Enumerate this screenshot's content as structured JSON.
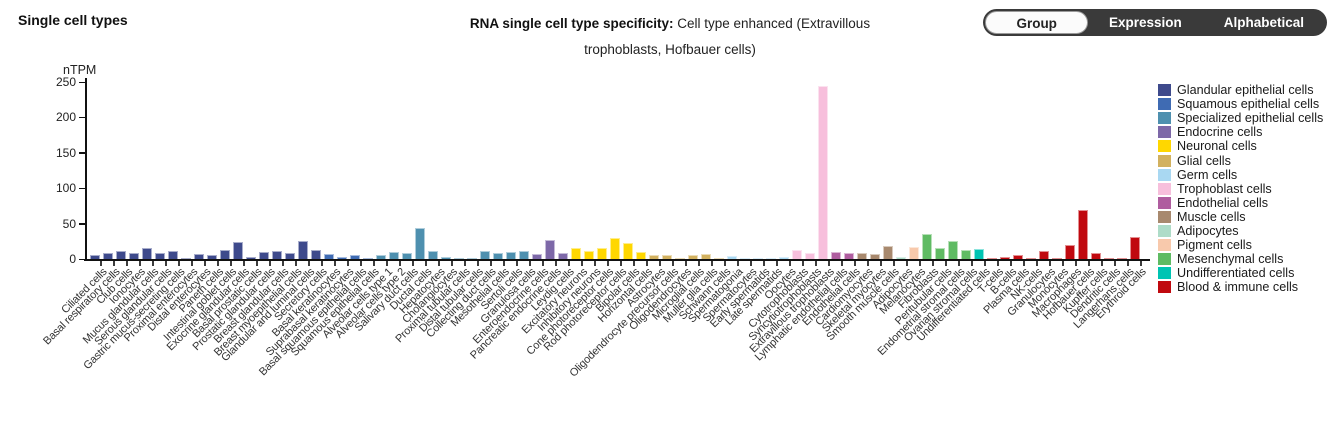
{
  "page": {
    "left_title": "Single cell types"
  },
  "title": {
    "bold": "RNA single cell type specificity:",
    "rest": " Cell type enhanced (Extravillous trophoblasts, Hofbauer cells)"
  },
  "controls": {
    "selected": "Group",
    "options": [
      "Group",
      "Expression",
      "Alphabetical"
    ]
  },
  "chart_data": {
    "type": "bar",
    "title": "RNA single cell type specificity: Cell type enhanced (Extravillous trophoblasts, Hofbauer cells)",
    "ylabel": "nTPM",
    "ylim": [
      0,
      250
    ],
    "yticks": [
      0,
      50,
      100,
      150,
      200,
      250
    ],
    "grid": false,
    "legend_position": "right",
    "groups": [
      {
        "name": "Glandular epithelial cells",
        "color": "#3E4A8C",
        "cells": [
          {
            "label": "Ciliated cells",
            "value": 6
          },
          {
            "label": "Basal respiratory cells",
            "value": 9
          },
          {
            "label": "Club cells",
            "value": 11
          },
          {
            "label": "Ionocytes",
            "value": 9
          },
          {
            "label": "Mucus glandular cells",
            "value": 15
          },
          {
            "label": "Serous glandular cells",
            "value": 8
          },
          {
            "label": "Gastric mucus-secreting cells",
            "value": 11
          },
          {
            "label": "Proximal enterocytes",
            "value": 2
          },
          {
            "label": "Distal enterocytes",
            "value": 7
          },
          {
            "label": "Paneth cells",
            "value": 6
          },
          {
            "label": "Intestinal goblet cells",
            "value": 13
          },
          {
            "label": "Exocrine glandular cells",
            "value": 24
          },
          {
            "label": "Basal prostatic cells",
            "value": 3
          },
          {
            "label": "Prostatic glandular cells",
            "value": 10
          },
          {
            "label": "Breast glandular cells",
            "value": 12
          },
          {
            "label": "Breast myoepithelial cells",
            "value": 8
          },
          {
            "label": "Glandular and luminal cells",
            "value": 26
          },
          {
            "label": "Secretory cells",
            "value": 13
          }
        ]
      },
      {
        "name": "Squamous epithelial cells",
        "color": "#3F6BB3",
        "cells": [
          {
            "label": "Basal keratinocytes",
            "value": 7
          },
          {
            "label": "Suprabasal keratinocytes",
            "value": 3
          },
          {
            "label": "Basal squamous epithelial cells",
            "value": 6
          },
          {
            "label": "Squamous epithelial cells",
            "value": 1.5
          }
        ]
      },
      {
        "name": "Specialized epithelial cells",
        "color": "#4E90AF",
        "cells": [
          {
            "label": "Alveolar cells type 1",
            "value": 5
          },
          {
            "label": "Alveolar cells type 2",
            "value": 10
          },
          {
            "label": "Salivary duct cells",
            "value": 9
          },
          {
            "label": "Ductal cells",
            "value": 44
          },
          {
            "label": "Hepatocytes",
            "value": 11
          },
          {
            "label": "Cholangiocytes",
            "value": 3.5
          },
          {
            "label": "Proximal tubular cells",
            "value": 2
          },
          {
            "label": "Distal tubular cells",
            "value": 0.5
          },
          {
            "label": "Collecting duct cells",
            "value": 11
          },
          {
            "label": "Mesothelial cells",
            "value": 9
          },
          {
            "label": "Sertoli cells",
            "value": 10
          },
          {
            "label": "Granulosa cells",
            "value": 11
          }
        ]
      },
      {
        "name": "Endocrine cells",
        "color": "#7D68A8",
        "cells": [
          {
            "label": "Enteroendocrine cells",
            "value": 7
          },
          {
            "label": "Pancreatic endocrine cells",
            "value": 27
          },
          {
            "label": "Leydig cells",
            "value": 8
          }
        ]
      },
      {
        "name": "Neuronal cells",
        "color": "#FFD700",
        "cells": [
          {
            "label": "Excitatory neurons",
            "value": 16
          },
          {
            "label": "Inhibitory neurons",
            "value": 11
          },
          {
            "label": "Cone photoreceptor cells",
            "value": 16
          },
          {
            "label": "Rod photoreceptor cells",
            "value": 29
          },
          {
            "label": "Bipolar cells",
            "value": 22
          },
          {
            "label": "Horizontal cells",
            "value": 10
          }
        ]
      },
      {
        "name": "Glial cells",
        "color": "#D2B15F",
        "cells": [
          {
            "label": "Astrocytes",
            "value": 6
          },
          {
            "label": "Oligodendrocyte precursor cells",
            "value": 5
          },
          {
            "label": "Oligodendrocytes",
            "value": 0.5
          },
          {
            "label": "Microglial cells",
            "value": 6
          },
          {
            "label": "Muller glia cells",
            "value": 7
          },
          {
            "label": "Schwann cells",
            "value": 1.5
          }
        ]
      },
      {
        "name": "Germ cells",
        "color": "#A9D8F2",
        "cells": [
          {
            "label": "Spermatogonia",
            "value": 4
          },
          {
            "label": "Spermatocytes",
            "value": 0.5
          },
          {
            "label": "Early spermatids",
            "value": 1
          },
          {
            "label": "Late spermatids",
            "value": 1.5
          },
          {
            "label": "Oocytes",
            "value": 3
          }
        ]
      },
      {
        "name": "Trophoblast cells",
        "color": "#F7BFDC",
        "cells": [
          {
            "label": "Cytotrophoblasts",
            "value": 13
          },
          {
            "label": "Syncytiotrophoblasts",
            "value": 8
          },
          {
            "label": "Extravillous trophoblasts",
            "value": 244
          }
        ]
      },
      {
        "name": "Endothelial cells",
        "color": "#AF5D9F",
        "cells": [
          {
            "label": "Lymphatic endothelial cells",
            "value": 10
          },
          {
            "label": "Endothelial cells",
            "value": 8
          }
        ]
      },
      {
        "name": "Muscle cells",
        "color": "#A8896E",
        "cells": [
          {
            "label": "Cardiomyocytes",
            "value": 8
          },
          {
            "label": "Skeletal myocytes",
            "value": 7
          },
          {
            "label": "Smooth muscle cells",
            "value": 19
          }
        ]
      },
      {
        "name": "Adipocytes",
        "color": "#AEDCC8",
        "cells": [
          {
            "label": "Adipocytes",
            "value": 3
          }
        ]
      },
      {
        "name": "Pigment cells",
        "color": "#F8C9AC",
        "cells": [
          {
            "label": "Melanocytes",
            "value": 17
          }
        ]
      },
      {
        "name": "Mesenchymal cells",
        "color": "#5FBB63",
        "cells": [
          {
            "label": "Fibroblasts",
            "value": 35
          },
          {
            "label": "Peritubular cells",
            "value": 16
          },
          {
            "label": "Endometrial stromal cells",
            "value": 26
          },
          {
            "label": "Ovarian stromal cells",
            "value": 13
          }
        ]
      },
      {
        "name": "Undifferentiated cells",
        "color": "#00C4B3",
        "cells": [
          {
            "label": "Undifferentiated cells",
            "value": 14
          }
        ]
      },
      {
        "name": "Blood & immune cells",
        "color": "#C0090F",
        "cells": [
          {
            "label": "T-cells",
            "value": 2
          },
          {
            "label": "B-cells",
            "value": 3
          },
          {
            "label": "Plasma cells",
            "value": 5
          },
          {
            "label": "NK-cells",
            "value": 1
          },
          {
            "label": "Granulocytes",
            "value": 12
          },
          {
            "label": "Monocytes",
            "value": 1
          },
          {
            "label": "Macrophages",
            "value": 20
          },
          {
            "label": "Hofbauer cells",
            "value": 69
          },
          {
            "label": "Kupffer cells",
            "value": 9
          },
          {
            "label": "Dendritic cells",
            "value": 1
          },
          {
            "label": "Langerhans cells",
            "value": 1
          },
          {
            "label": "Erythroid cells",
            "value": 31
          }
        ]
      }
    ]
  }
}
